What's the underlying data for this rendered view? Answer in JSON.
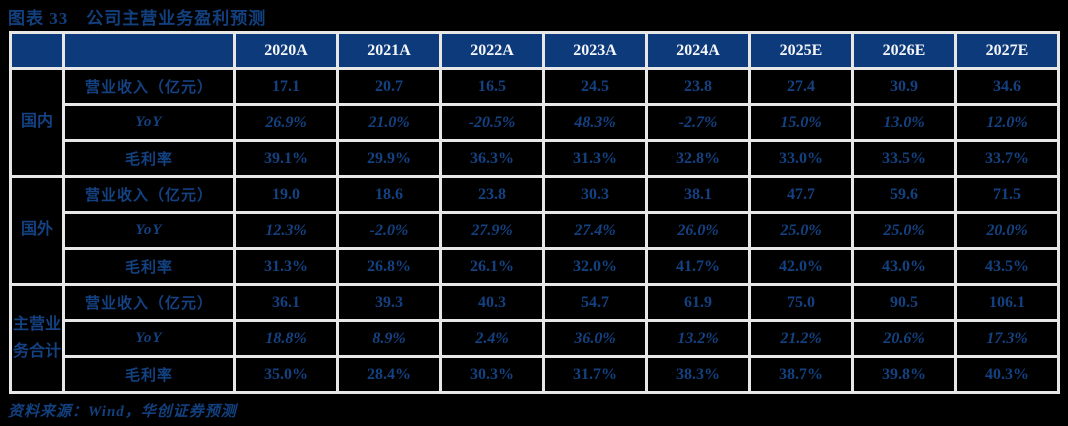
{
  "figure": {
    "title": "图表 33　公司主营业务盈利预测",
    "source": "资料来源：Wind，华创证券预测"
  },
  "colors": {
    "page_background": "#000000",
    "header_background": "#0d3a7b",
    "header_text": "#f4f6f9",
    "body_text_navy": "#134181",
    "gridline": "#e7e7e7",
    "title_navy": "#12407f"
  },
  "table": {
    "year_headers": [
      "2020A",
      "2021A",
      "2022A",
      "2023A",
      "2024A",
      "2025E",
      "2026E",
      "2027E"
    ],
    "groups": [
      {
        "label": "国内",
        "rows": [
          {
            "label": "营业收入（亿元）",
            "values": [
              "17.1",
              "20.7",
              "16.5",
              "24.5",
              "23.8",
              "27.4",
              "30.9",
              "34.6"
            ]
          },
          {
            "label": "YoY",
            "values": [
              "26.9%",
              "21.0%",
              "-20.5%",
              "48.3%",
              "-2.7%",
              "15.0%",
              "13.0%",
              "12.0%"
            ]
          },
          {
            "label": "毛利率",
            "values": [
              "39.1%",
              "29.9%",
              "36.3%",
              "31.3%",
              "32.8%",
              "33.0%",
              "33.5%",
              "33.7%"
            ]
          }
        ]
      },
      {
        "label": "国外",
        "rows": [
          {
            "label": "营业收入（亿元）",
            "values": [
              "19.0",
              "18.6",
              "23.8",
              "30.3",
              "38.1",
              "47.7",
              "59.6",
              "71.5"
            ]
          },
          {
            "label": "YoY",
            "values": [
              "12.3%",
              "-2.0%",
              "27.9%",
              "27.4%",
              "26.0%",
              "25.0%",
              "25.0%",
              "20.0%"
            ]
          },
          {
            "label": "毛利率",
            "values": [
              "31.3%",
              "26.8%",
              "26.1%",
              "32.0%",
              "41.7%",
              "42.0%",
              "43.0%",
              "43.5%"
            ]
          }
        ]
      },
      {
        "label": "主营业务合计",
        "rows": [
          {
            "label": "营业收入（亿元）",
            "values": [
              "36.1",
              "39.3",
              "40.3",
              "54.7",
              "61.9",
              "75.0",
              "90.5",
              "106.1"
            ]
          },
          {
            "label": "YoY",
            "values": [
              "18.8%",
              "8.9%",
              "2.4%",
              "36.0%",
              "13.2%",
              "21.2%",
              "20.6%",
              "17.3%"
            ]
          },
          {
            "label": "毛利率",
            "values": [
              "35.0%",
              "28.4%",
              "30.3%",
              "31.7%",
              "38.3%",
              "38.7%",
              "39.8%",
              "40.3%"
            ]
          }
        ]
      }
    ]
  }
}
